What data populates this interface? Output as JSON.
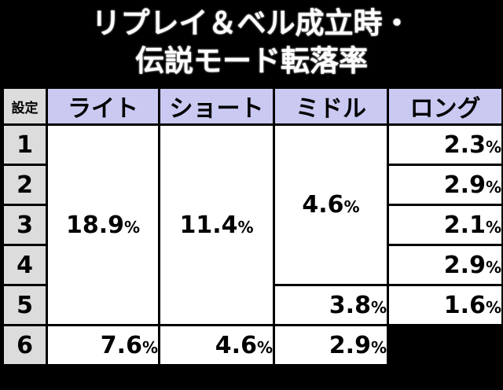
{
  "title": {
    "line1": "リプレイ＆ベル成立時・",
    "line2": "伝説モード転落率"
  },
  "table": {
    "headers": [
      "設定",
      "ライト",
      "ショート",
      "ミドル",
      "ロング"
    ],
    "settings": [
      "1",
      "2",
      "3",
      "4",
      "5",
      "6"
    ],
    "light": {
      "value": "18.9",
      "unit": "%"
    },
    "short": [
      {
        "value": "11.4",
        "unit": "%"
      },
      {
        "value": "7.6",
        "unit": "%"
      }
    ],
    "middle": [
      {
        "value": "4.6",
        "unit": "%"
      },
      {
        "value": "3.8",
        "unit": "%"
      },
      {
        "value": "4.6",
        "unit": "%"
      }
    ],
    "long": [
      {
        "value": "2.3",
        "unit": "%"
      },
      {
        "value": "2.9",
        "unit": "%"
      },
      {
        "value": "2.1",
        "unit": "%"
      },
      {
        "value": "2.9",
        "unit": "%"
      },
      {
        "value": "1.6",
        "unit": "%"
      },
      {
        "value": "2.9",
        "unit": "%"
      }
    ]
  }
}
